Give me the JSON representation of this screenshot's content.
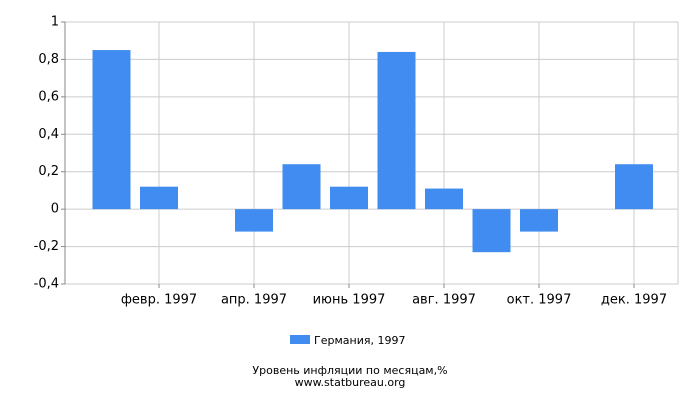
{
  "chart_data": {
    "type": "bar",
    "title": "Уровень инфляции по месяцам,%",
    "subtitle": "www.statbureau.org",
    "categories": [
      null,
      "февр. 1997",
      null,
      "апр. 1997",
      null,
      "июнь 1997",
      null,
      "авг. 1997",
      null,
      "окт. 1997",
      null,
      "дек. 1997"
    ],
    "series": [
      {
        "name": "Германия, 1997",
        "color": "#418cf0",
        "values": [
          0.85,
          0.12,
          0,
          -0.12,
          0.24,
          0.12,
          0.84,
          0.11,
          -0.23,
          -0.12,
          0,
          0.24
        ]
      }
    ],
    "ylim": [
      -0.4,
      1
    ],
    "yticks": [
      {
        "value": -0.4,
        "label": "-0,4"
      },
      {
        "value": -0.2,
        "label": "-0,2"
      },
      0,
      {
        "value": 0.2,
        "label": "0,2"
      },
      {
        "value": 0.4,
        "label": "0,4"
      },
      {
        "value": 0.6,
        "label": "0,6"
      },
      {
        "value": 0.8,
        "label": "0,8"
      },
      1
    ],
    "grid": true
  }
}
